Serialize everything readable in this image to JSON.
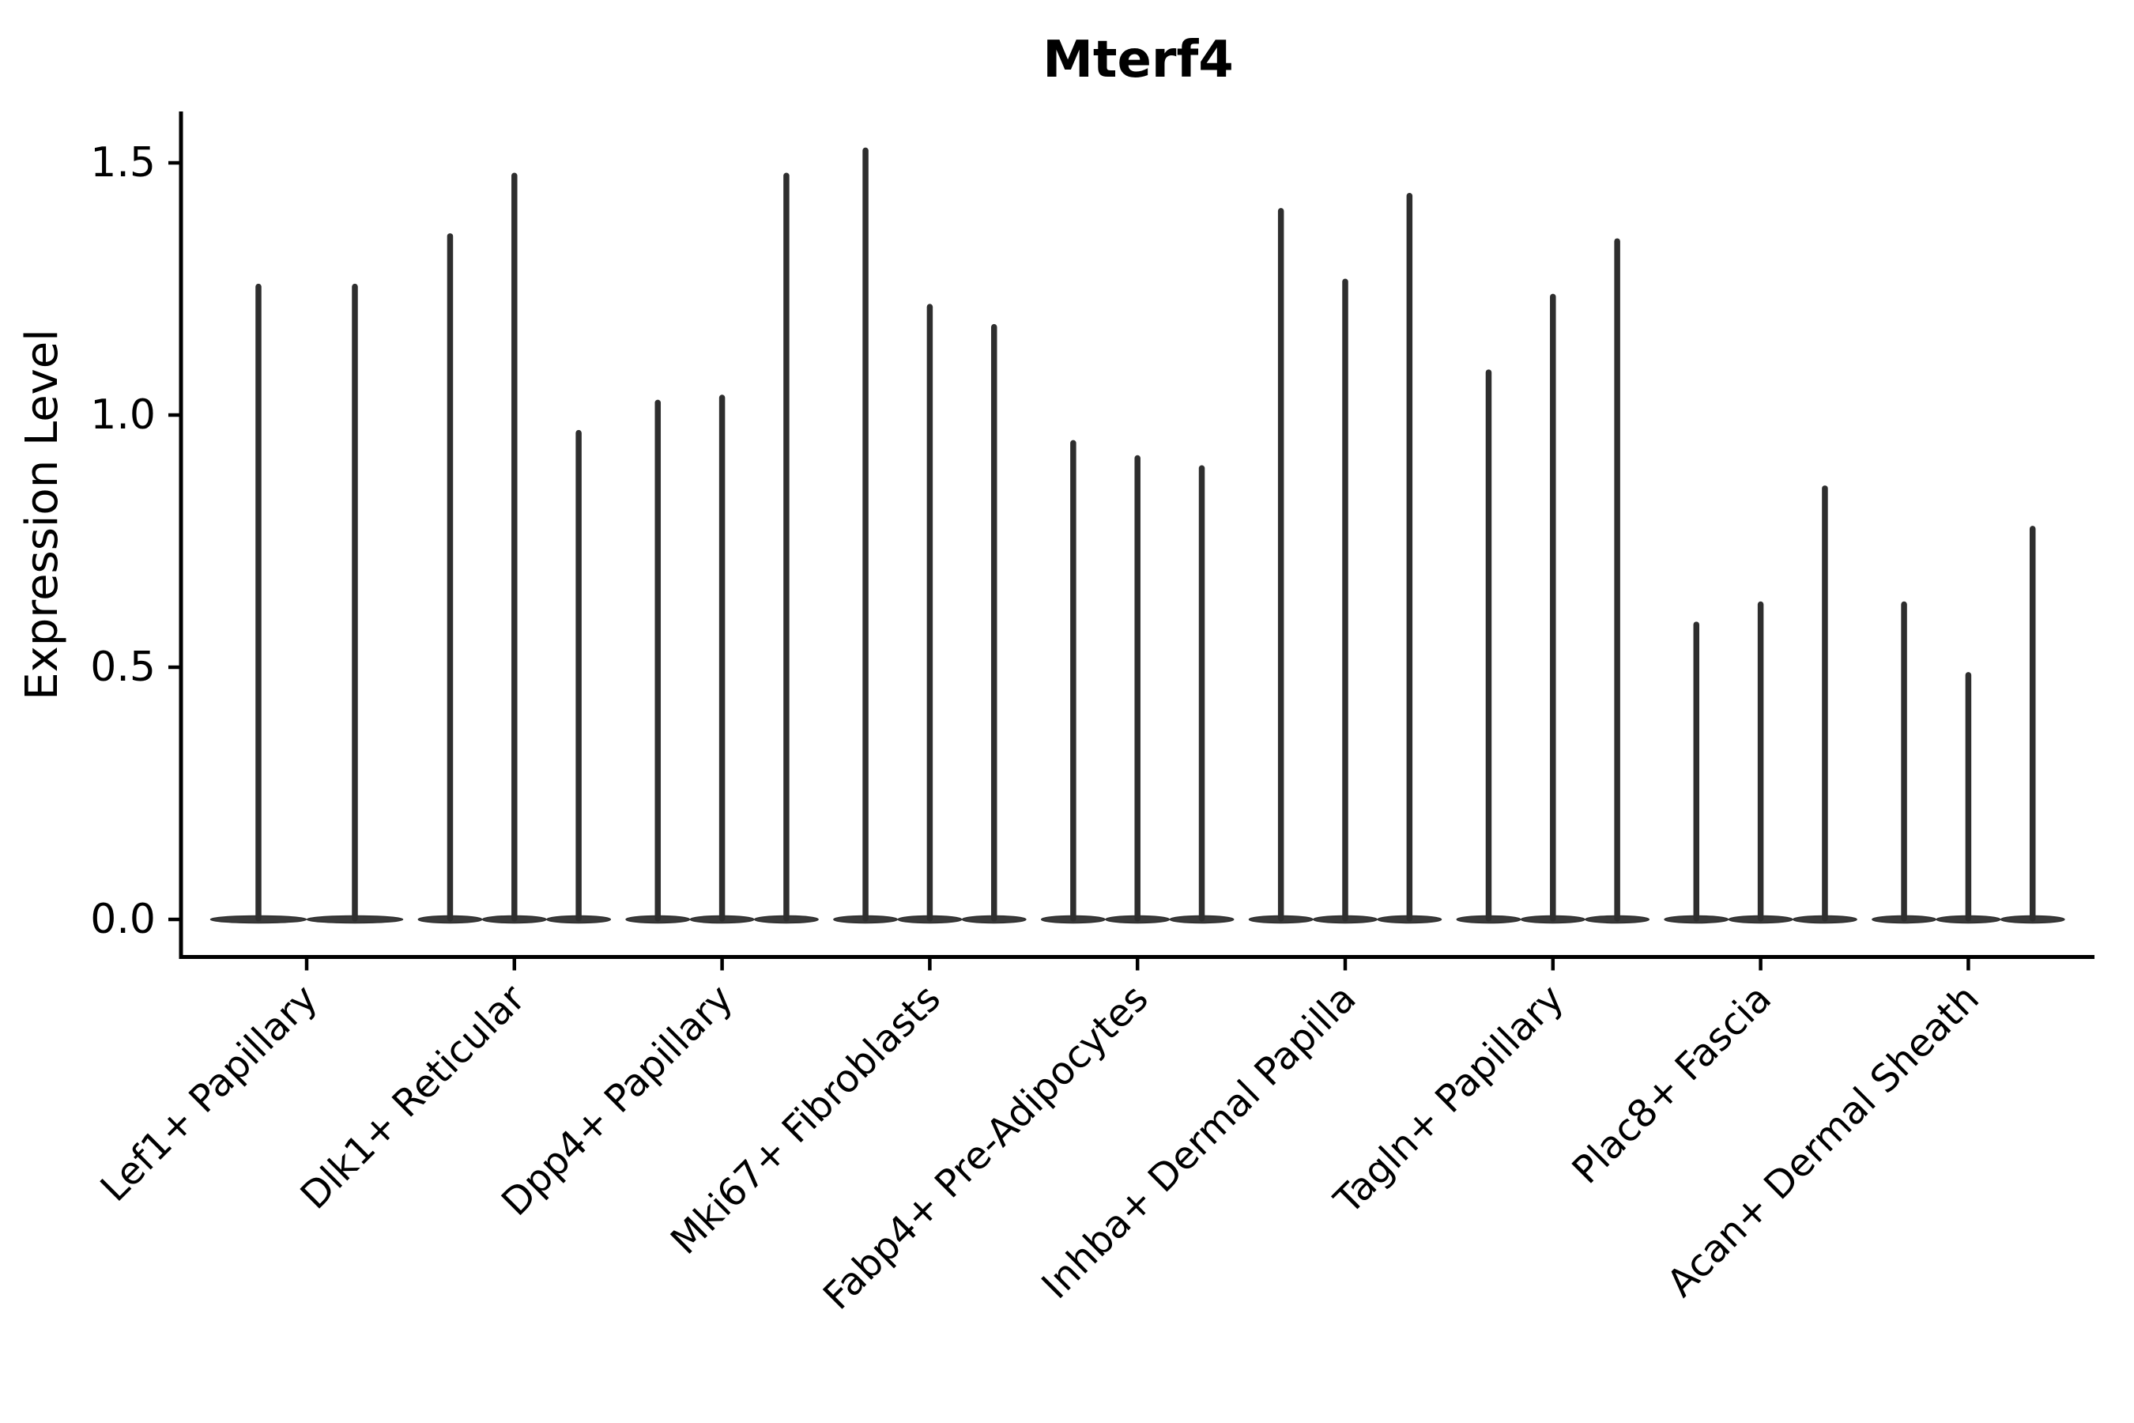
{
  "chart_data": {
    "type": "violin",
    "title": "Mterf4",
    "ylabel": "Expression Level",
    "xlabel": "",
    "yticks": [
      "0.0",
      "0.5",
      "1.0",
      "1.5"
    ],
    "ylim": [
      -0.07,
      1.61
    ],
    "grid": false,
    "legend": "none",
    "x_tick_rotation": 45,
    "colors": {
      "violin_fill": "#3a3a3a",
      "violin_stroke": "#2e2e2e",
      "axis": "#000000",
      "text": "#000000",
      "background": "#ffffff"
    },
    "categories": [
      "Lef1+ Papillary",
      "Dlk1+ Reticular",
      "Dpp4+ Papillary",
      "Mki67+ Fibroblasts",
      "Fabp4+ Pre-Adipocytes",
      "Inhba+ Dermal Papilla",
      "Tagln+ Papillary",
      "Plac8+ Fascia",
      "Acan+ Dermal Sheath"
    ],
    "groups": [
      {
        "label": "Lef1+ Papillary",
        "violin_max_values": [
          1.26,
          1.26
        ]
      },
      {
        "label": "Dlk1+ Reticular",
        "violin_max_values": [
          1.36,
          1.48,
          0.97
        ]
      },
      {
        "label": "Dpp4+ Papillary",
        "violin_max_values": [
          1.03,
          1.04,
          1.48
        ]
      },
      {
        "label": "Mki67+ Fibroblasts",
        "violin_max_values": [
          1.53,
          1.22,
          1.18
        ]
      },
      {
        "label": "Fabp4+ Pre-Adipocytes",
        "violin_max_values": [
          0.95,
          0.92,
          0.9
        ]
      },
      {
        "label": "Inhba+ Dermal Papilla",
        "violin_max_values": [
          1.41,
          1.27,
          1.44
        ]
      },
      {
        "label": "Tagln+ Papillary",
        "violin_max_values": [
          1.09,
          1.24,
          1.35
        ]
      },
      {
        "label": "Plac8+ Fascia",
        "violin_max_values": [
          0.59,
          0.63,
          0.86
        ]
      },
      {
        "label": "Acan+ Dermal Sheath",
        "violin_max_values": [
          0.63,
          0.49,
          0.78
        ]
      }
    ]
  }
}
